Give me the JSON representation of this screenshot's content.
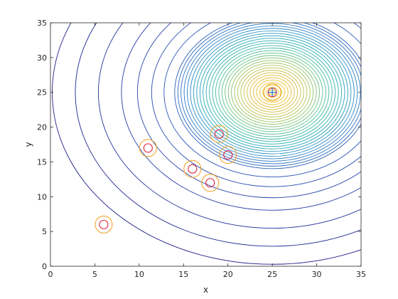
{
  "chart_data": {
    "type": "contour",
    "xlabel": "x",
    "ylabel": "y",
    "xlim": [
      0,
      35
    ],
    "ylim": [
      0,
      35
    ],
    "x_ticks": [
      0,
      5,
      10,
      15,
      20,
      25,
      30,
      35
    ],
    "y_ticks": [
      0,
      5,
      10,
      15,
      20,
      25,
      30,
      35
    ],
    "grid": false,
    "contour_center": {
      "x": 25,
      "y": 25
    },
    "contour_semi_axis_ratio": 1.0,
    "contour_levels_outer_x_radius": [
      24.8,
      22.2,
      19.6,
      17.0,
      15.2,
      13.6,
      12.2,
      11.0
    ],
    "contour_levels_count": 38,
    "contour_colormap": [
      "#1f1f8a",
      "#2a4fb4",
      "#2f7fc8",
      "#23a8b8",
      "#4cbf96",
      "#a9c45a",
      "#e8b830",
      "#f0d020"
    ],
    "peak_marker": {
      "x": 25,
      "y": 25,
      "symbol": "+",
      "color": "#1f77d4"
    },
    "points": [
      {
        "x": 6,
        "y": 6
      },
      {
        "x": 11,
        "y": 17
      },
      {
        "x": 16,
        "y": 14
      },
      {
        "x": 18,
        "y": 12
      },
      {
        "x": 19,
        "y": 19
      },
      {
        "x": 20,
        "y": 16
      },
      {
        "x": 25,
        "y": 25
      }
    ],
    "inner_marker_color": "#d6203f",
    "outer_marker_color": "#f0a020"
  }
}
